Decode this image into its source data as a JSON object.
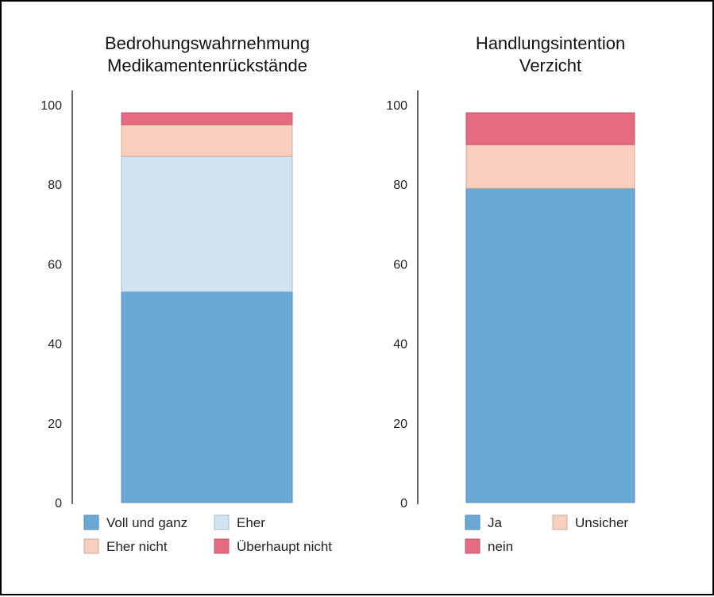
{
  "chart_data": [
    {
      "type": "bar",
      "stacked": true,
      "title_lines": [
        "Bedrohungswahrnehmung",
        "Medikamentenrückstände"
      ],
      "xlabel": "",
      "ylabel": "",
      "ylim": [
        0,
        100
      ],
      "yticks": [
        "0",
        "20",
        "40",
        "60",
        "80",
        "100"
      ],
      "categories": [
        ""
      ],
      "grid": false,
      "legend_position": "bottom",
      "series": [
        {
          "name": "Voll und ganz",
          "values": [
            53
          ],
          "color": "#6aa8d6"
        },
        {
          "name": "Eher",
          "values": [
            34
          ],
          "color": "#cfe3f3"
        },
        {
          "name": "Eher nicht",
          "values": [
            8
          ],
          "color": "#f8cfbd"
        },
        {
          "name": "Überhaupt nicht",
          "values": [
            3
          ],
          "color": "#e56b82"
        }
      ]
    },
    {
      "type": "bar",
      "stacked": true,
      "title_lines": [
        "Handlungsintention",
        "Verzicht"
      ],
      "xlabel": "",
      "ylabel": "",
      "ylim": [
        0,
        100
      ],
      "yticks": [
        "0",
        "20",
        "40",
        "60",
        "80",
        "100"
      ],
      "categories": [
        ""
      ],
      "grid": false,
      "legend_position": "bottom",
      "series": [
        {
          "name": "Ja",
          "values": [
            79
          ],
          "color": "#6aa8d6"
        },
        {
          "name": "Unsicher",
          "values": [
            11
          ],
          "color": "#f8cfbd"
        },
        {
          "name": "nein",
          "values": [
            8
          ],
          "color": "#e56b82"
        }
      ]
    }
  ]
}
